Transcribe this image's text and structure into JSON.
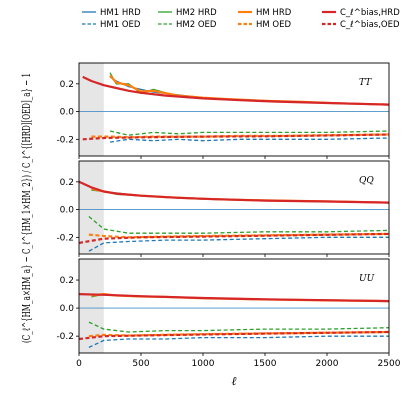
{
  "chart_data": {
    "type": "line",
    "xlabel": "ℓ",
    "ylabel": "(C_ℓ^{HM_a×HM_a} − C_ℓ^{HM_1×HM_2}) / C_ℓ^{[HRD][OED]_a} − 1",
    "xlim": [
      0,
      2500
    ],
    "xticks": [
      0,
      500,
      1000,
      1500,
      2000,
      2500
    ],
    "ylim": [
      -0.32,
      0.35
    ],
    "yticks": [
      -0.2,
      0.0,
      0.2
    ],
    "grey_band": [
      0,
      200
    ],
    "legend": {
      "placement": "top",
      "entries": [
        {
          "label": "HM1 HRD",
          "color": "#1f77b4",
          "dash": "solid",
          "width": 1.3
        },
        {
          "label": "HM2 HRD",
          "color": "#2ca02c",
          "dash": "solid",
          "width": 1.3
        },
        {
          "label": "HM HRD",
          "color": "#ff7f0e",
          "dash": "solid",
          "width": 2.2
        },
        {
          "label": "C_ℓ^bias,HRD",
          "color": "#d62728",
          "dash": "solid",
          "width": 2.2
        },
        {
          "label": "HM1 OED",
          "color": "#1f77b4",
          "dash": "dashed",
          "width": 1.3
        },
        {
          "label": "HM2 OED",
          "color": "#2ca02c",
          "dash": "dashed",
          "width": 1.3
        },
        {
          "label": "HM OED",
          "color": "#ff7f0e",
          "dash": "dashed",
          "width": 2.2
        },
        {
          "label": "C_ℓ^bias,OED",
          "color": "#d62728",
          "dash": "dashed",
          "width": 2.2
        }
      ]
    },
    "panels": [
      {
        "label": "TT",
        "series": [
          {
            "name": "HM1 HRD",
            "x": [
              250,
              300,
              400,
              500,
              600,
              800,
              1000,
              1200,
              1500,
              1800,
              2100,
              2500
            ],
            "y": [
              0.25,
              0.22,
              0.18,
              0.16,
              0.14,
              0.12,
              0.1,
              0.09,
              0.08,
              0.07,
              0.06,
              0.05
            ]
          },
          {
            "name": "HM2 HRD",
            "x": [
              250,
              300,
              400,
              500,
              600,
              800,
              1000,
              1200,
              1500,
              1800,
              2100,
              2500
            ],
            "y": [
              0.28,
              0.2,
              0.2,
              0.13,
              0.16,
              0.11,
              0.1,
              0.09,
              0.075,
              0.07,
              0.06,
              0.05
            ]
          },
          {
            "name": "HM HRD",
            "x": [
              250,
              300,
              400,
              500,
              600,
              800,
              1000,
              1200,
              1500,
              1800,
              2100,
              2500
            ],
            "y": [
              0.26,
              0.21,
              0.19,
              0.145,
              0.15,
              0.115,
              0.1,
              0.09,
              0.078,
              0.07,
              0.06,
              0.05
            ]
          },
          {
            "name": "C_ℓ^bias,HRD",
            "x": [
              30,
              100,
              200,
              300,
              400,
              500,
              700,
              1000,
              1300,
              1600,
              2000,
              2500
            ],
            "y": [
              0.25,
              0.22,
              0.19,
              0.17,
              0.15,
              0.135,
              0.115,
              0.095,
              0.082,
              0.072,
              0.062,
              0.05
            ]
          },
          {
            "name": "HM1 OED",
            "x": [
              250,
              400,
              600,
              800,
              1000,
              1300,
              1600,
              2000,
              2500
            ],
            "y": [
              -0.22,
              -0.2,
              -0.21,
              -0.2,
              -0.21,
              -0.2,
              -0.2,
              -0.2,
              -0.19
            ]
          },
          {
            "name": "HM2 OED",
            "x": [
              250,
              400,
              600,
              800,
              1000,
              1300,
              1600,
              2000,
              2500
            ],
            "y": [
              -0.14,
              -0.17,
              -0.15,
              -0.16,
              -0.15,
              -0.15,
              -0.15,
              -0.15,
              -0.14
            ]
          },
          {
            "name": "HM OED",
            "x": [
              100,
              250,
              400,
              600,
              800,
              1000,
              1300,
              1600,
              2000,
              2500
            ],
            "y": [
              -0.18,
              -0.18,
              -0.185,
              -0.18,
              -0.18,
              -0.18,
              -0.175,
              -0.175,
              -0.17,
              -0.165
            ]
          },
          {
            "name": "C_ℓ^bias,OED",
            "x": [
              30,
              200,
              500,
              1000,
              1500,
              2000,
              2500
            ],
            "y": [
              -0.2,
              -0.19,
              -0.185,
              -0.18,
              -0.178,
              -0.172,
              -0.165
            ]
          }
        ]
      },
      {
        "label": "QQ",
        "series": [
          {
            "name": "HM1 HRD",
            "x": [
              100,
              200,
              300,
              500,
              700,
              1000,
              1300,
              1600,
              2000,
              2500
            ],
            "y": [
              0.16,
              0.13,
              0.12,
              0.1,
              0.09,
              0.08,
              0.07,
              0.065,
              0.06,
              0.05
            ]
          },
          {
            "name": "HM2 HRD",
            "x": [
              100,
              200,
              300,
              500,
              700,
              1000,
              1300,
              1600,
              2000,
              2500
            ],
            "y": [
              0.14,
              0.13,
              0.11,
              0.1,
              0.09,
              0.075,
              0.07,
              0.065,
              0.06,
              0.05
            ]
          },
          {
            "name": "HM HRD",
            "x": [
              100,
              200,
              300,
              500,
              700,
              1000,
              1300,
              1600,
              2000,
              2500
            ],
            "y": [
              0.15,
              0.13,
              0.115,
              0.1,
              0.09,
              0.078,
              0.07,
              0.065,
              0.06,
              0.05
            ]
          },
          {
            "name": "C_ℓ^bias,HRD",
            "x": [
              0,
              100,
              200,
              300,
              500,
              800,
              1100,
              1500,
              2000,
              2500
            ],
            "y": [
              0.2,
              0.16,
              0.13,
              0.115,
              0.1,
              0.085,
              0.075,
              0.065,
              0.058,
              0.05
            ]
          },
          {
            "name": "HM1 OED",
            "x": [
              80,
              200,
              400,
              700,
              1000,
              1500,
              2000,
              2500
            ],
            "y": [
              -0.3,
              -0.24,
              -0.23,
              -0.22,
              -0.22,
              -0.21,
              -0.2,
              -0.2
            ]
          },
          {
            "name": "HM2 OED",
            "x": [
              80,
              200,
              400,
              700,
              1000,
              1500,
              2000,
              2500
            ],
            "y": [
              -0.05,
              -0.14,
              -0.17,
              -0.17,
              -0.17,
              -0.16,
              -0.16,
              -0.15
            ]
          },
          {
            "name": "HM OED",
            "x": [
              80,
              200,
              400,
              700,
              1000,
              1500,
              2000,
              2500
            ],
            "y": [
              -0.18,
              -0.19,
              -0.2,
              -0.195,
              -0.19,
              -0.185,
              -0.18,
              -0.175
            ]
          },
          {
            "name": "C_ℓ^bias,OED",
            "x": [
              0,
              200,
              500,
              1000,
              1500,
              2000,
              2500
            ],
            "y": [
              -0.24,
              -0.21,
              -0.2,
              -0.195,
              -0.188,
              -0.182,
              -0.175
            ]
          }
        ]
      },
      {
        "label": "UU",
        "series": [
          {
            "name": "HM1 HRD",
            "x": [
              100,
              200,
              300,
              500,
              700,
              1000,
              1300,
              1600,
              2000,
              2500
            ],
            "y": [
              0.1,
              0.1,
              0.09,
              0.085,
              0.08,
              0.07,
              0.065,
              0.06,
              0.055,
              0.05
            ]
          },
          {
            "name": "HM2 HRD",
            "x": [
              100,
              200,
              300,
              500,
              700,
              1000,
              1300,
              1600,
              2000,
              2500
            ],
            "y": [
              0.08,
              0.1,
              0.09,
              0.08,
              0.08,
              0.07,
              0.065,
              0.06,
              0.055,
              0.05
            ]
          },
          {
            "name": "HM HRD",
            "x": [
              100,
              200,
              300,
              500,
              700,
              1000,
              1300,
              1600,
              2000,
              2500
            ],
            "y": [
              0.09,
              0.1,
              0.09,
              0.083,
              0.08,
              0.07,
              0.065,
              0.06,
              0.055,
              0.05
            ]
          },
          {
            "name": "C_ℓ^bias,HRD",
            "x": [
              0,
              200,
              500,
              1000,
              1500,
              2000,
              2500
            ],
            "y": [
              0.1,
              0.095,
              0.085,
              0.072,
              0.063,
              0.056,
              0.05
            ]
          },
          {
            "name": "HM1 OED",
            "x": [
              80,
              200,
              400,
              700,
              1000,
              1500,
              2000,
              2500
            ],
            "y": [
              -0.28,
              -0.23,
              -0.22,
              -0.22,
              -0.21,
              -0.21,
              -0.2,
              -0.2
            ]
          },
          {
            "name": "HM2 OED",
            "x": [
              80,
              200,
              400,
              700,
              1000,
              1500,
              2000,
              2500
            ],
            "y": [
              -0.1,
              -0.15,
              -0.17,
              -0.16,
              -0.16,
              -0.15,
              -0.15,
              -0.14
            ]
          },
          {
            "name": "HM OED",
            "x": [
              80,
              200,
              400,
              700,
              1000,
              1500,
              2000,
              2500
            ],
            "y": [
              -0.2,
              -0.19,
              -0.195,
              -0.19,
              -0.185,
              -0.18,
              -0.175,
              -0.17
            ]
          },
          {
            "name": "C_ℓ^bias,OED",
            "x": [
              0,
              200,
              500,
              1000,
              1500,
              2000,
              2500
            ],
            "y": [
              -0.22,
              -0.2,
              -0.195,
              -0.188,
              -0.182,
              -0.176,
              -0.17
            ]
          }
        ]
      }
    ]
  }
}
